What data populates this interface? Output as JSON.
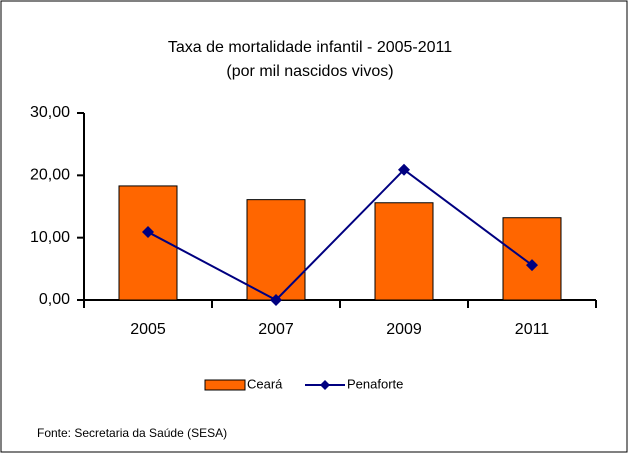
{
  "chart_data": {
    "type": "bar",
    "title": [
      "Taxa de mortalidade infantil - 2005-2011",
      "(por mil nascidos vivos)"
    ],
    "categories": [
      "2005",
      "2007",
      "2009",
      "2011"
    ],
    "series": [
      {
        "name": "Ceará",
        "type": "bar",
        "color": "#ff6600",
        "values": [
          18.3,
          16.1,
          15.6,
          13.2
        ]
      },
      {
        "name": "Penaforte",
        "type": "line",
        "color": "#000080",
        "values": [
          10.9,
          0,
          20.9,
          5.6
        ]
      }
    ],
    "ylim": [
      0,
      30
    ],
    "yticks": [
      {
        "value": 0,
        "label": "0,00"
      },
      {
        "value": 10,
        "label": "10,00"
      },
      {
        "value": 20,
        "label": "20,00"
      },
      {
        "value": 30,
        "label": "30,00"
      }
    ],
    "source": "Fonte: Secretaria da Saúde (SESA)"
  }
}
